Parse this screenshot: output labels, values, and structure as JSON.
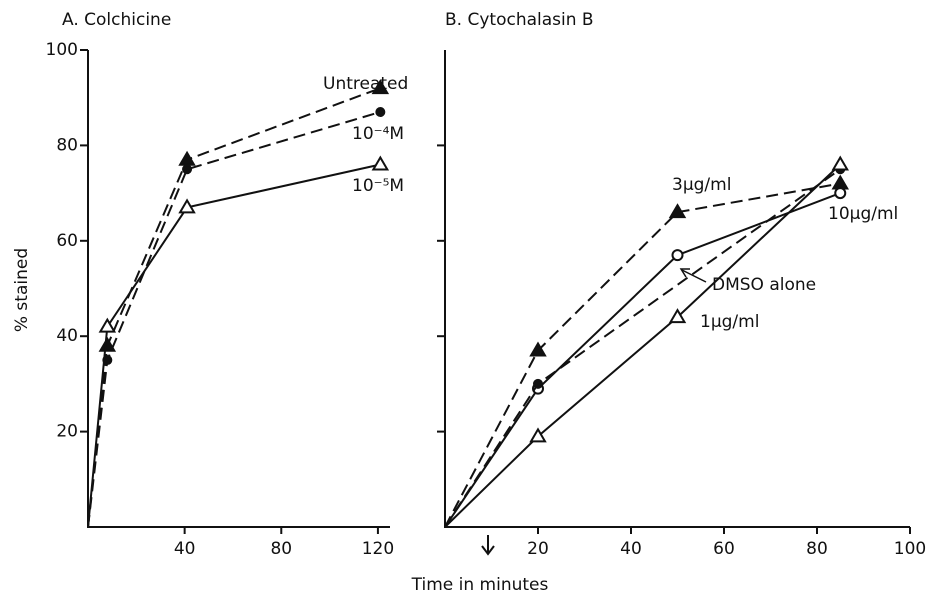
{
  "xlabel": "Time in minutes",
  "chart_data": [
    {
      "type": "line",
      "title": "A. Colchicine",
      "ylabel": "% stained",
      "xlim": [
        0,
        125
      ],
      "ylim": [
        0,
        100
      ],
      "xticks": [
        40,
        80,
        120
      ],
      "yticks": [
        20,
        40,
        60,
        80,
        100
      ],
      "series": [
        {
          "name": "Untreated",
          "color": "#111111",
          "marker": "filled-triangle",
          "dashed": true,
          "x": [
            0,
            8,
            41,
            121
          ],
          "values": [
            0,
            38,
            77,
            92
          ]
        },
        {
          "name": "10⁻⁴M",
          "color": "#111111",
          "marker": "filled-circle",
          "dashed": true,
          "x": [
            0,
            8,
            41,
            121
          ],
          "values": [
            0,
            35,
            75,
            87
          ]
        },
        {
          "name": "10⁻⁵M",
          "color": "#111111",
          "marker": "open-triangle",
          "dashed": false,
          "x": [
            0,
            8,
            41,
            121
          ],
          "values": [
            0,
            42,
            67,
            76
          ]
        }
      ]
    },
    {
      "type": "line",
      "title": "B. Cytochalasin B",
      "xlim": [
        0,
        100
      ],
      "ylim": [
        0,
        100
      ],
      "xticks": [
        20,
        40,
        60,
        80,
        100
      ],
      "yticks": [
        20,
        40,
        60,
        80
      ],
      "series": [
        {
          "name": "3µg/ml",
          "color": "#111111",
          "marker": "filled-triangle",
          "dashed": true,
          "x": [
            0,
            20,
            50,
            85
          ],
          "values": [
            0,
            37,
            66,
            72
          ]
        },
        {
          "name": "10µg/ml",
          "color": "#111111",
          "marker": "open-circle",
          "dashed": false,
          "x": [
            0,
            20,
            50,
            85
          ],
          "values": [
            0,
            29,
            57,
            70
          ]
        },
        {
          "name": "DMSO alone",
          "color": "#111111",
          "marker": "filled-circle",
          "dashed": true,
          "x": [
            0,
            20,
            85
          ],
          "values": [
            0,
            30,
            75
          ]
        },
        {
          "name": "1µg/ml",
          "color": "#111111",
          "marker": "open-triangle",
          "dashed": false,
          "x": [
            0,
            20,
            50,
            85
          ],
          "values": [
            0,
            19,
            44,
            76
          ]
        }
      ]
    }
  ]
}
